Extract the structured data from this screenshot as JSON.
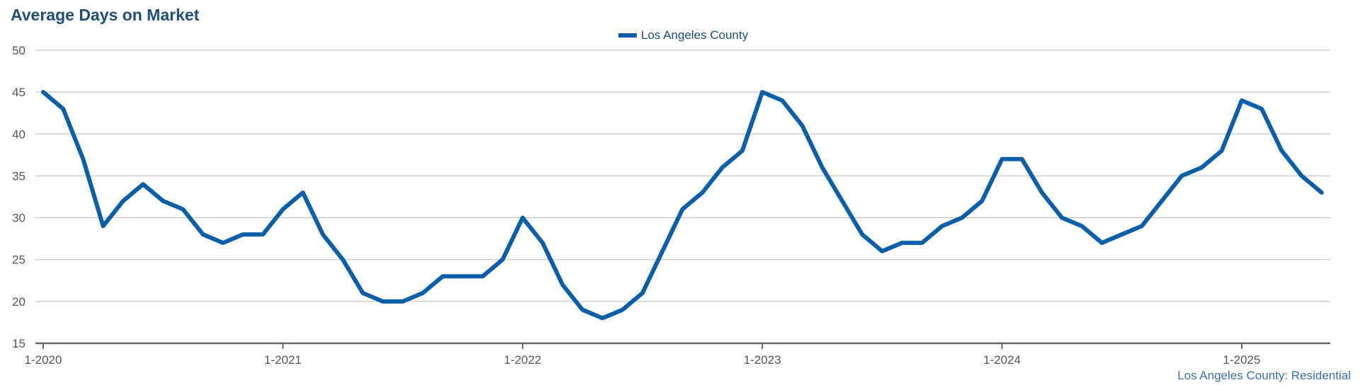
{
  "header": {
    "title": "Average Days on Market"
  },
  "footer": {
    "note": "Los Angeles County: Residential"
  },
  "colors": {
    "series": "#0b5ea8",
    "title": "#1f4e79",
    "grid": "#c8c8c8",
    "axis": "#666666",
    "tick_text": "#555555",
    "note": "#3a6fa8"
  },
  "chart_data": {
    "type": "line",
    "title": "Average Days on Market",
    "xlabel": "",
    "ylabel": "",
    "ylim": [
      15,
      50
    ],
    "yticks": [
      15,
      20,
      25,
      30,
      35,
      40,
      45,
      50
    ],
    "x_tick_labels": [
      "1-2020",
      "1-2021",
      "1-2022",
      "1-2023",
      "1-2024",
      "1-2025"
    ],
    "x_tick_months": [
      "2020-01",
      "2021-01",
      "2022-01",
      "2023-01",
      "2024-01",
      "2025-01"
    ],
    "x_range": [
      "2020-01",
      "2025-05"
    ],
    "legend_position": "top-center",
    "grid": true,
    "series": [
      {
        "name": "Los Angeles County",
        "color": "#0b5ea8",
        "x": [
          "2020-01",
          "2020-02",
          "2020-03",
          "2020-04",
          "2020-05",
          "2020-06",
          "2020-07",
          "2020-08",
          "2020-09",
          "2020-10",
          "2020-11",
          "2020-12",
          "2021-01",
          "2021-02",
          "2021-03",
          "2021-04",
          "2021-05",
          "2021-06",
          "2021-07",
          "2021-08",
          "2021-09",
          "2021-10",
          "2021-11",
          "2021-12",
          "2022-01",
          "2022-02",
          "2022-03",
          "2022-04",
          "2022-05",
          "2022-06",
          "2022-07",
          "2022-08",
          "2022-09",
          "2022-10",
          "2022-11",
          "2022-12",
          "2023-01",
          "2023-02",
          "2023-03",
          "2023-04",
          "2023-05",
          "2023-06",
          "2023-07",
          "2023-08",
          "2023-09",
          "2023-10",
          "2023-11",
          "2023-12",
          "2024-01",
          "2024-02",
          "2024-03",
          "2024-04",
          "2024-05",
          "2024-06",
          "2024-07",
          "2024-08",
          "2024-09",
          "2024-10",
          "2024-11",
          "2024-12",
          "2025-01",
          "2025-02",
          "2025-03",
          "2025-04",
          "2025-05"
        ],
        "values": [
          45,
          43,
          37,
          29,
          32,
          34,
          32,
          31,
          28,
          27,
          28,
          28,
          31,
          33,
          28,
          25,
          21,
          20,
          20,
          21,
          23,
          23,
          23,
          25,
          30,
          27,
          22,
          19,
          18,
          19,
          21,
          26,
          31,
          33,
          36,
          38,
          45,
          44,
          41,
          36,
          32,
          28,
          26,
          27,
          27,
          29,
          30,
          32,
          37,
          37,
          33,
          30,
          29,
          27,
          28,
          29,
          32,
          35,
          36,
          38,
          44,
          43,
          38,
          35,
          33
        ]
      }
    ]
  }
}
